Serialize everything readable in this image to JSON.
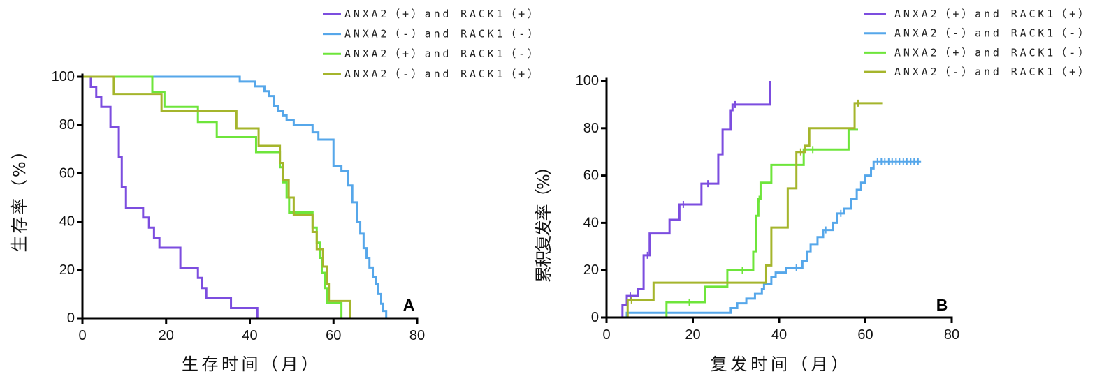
{
  "chart_data": [
    {
      "type": "line",
      "line_shape": "step",
      "panel_label": "A",
      "xlabel": "生存时间（月）",
      "ylabel": "生存率（%）",
      "xlim": [
        0,
        80
      ],
      "ylim": [
        0,
        100
      ],
      "xticks": [
        0,
        20,
        40,
        60,
        80
      ],
      "yticks": [
        0,
        20,
        40,
        60,
        80,
        100
      ],
      "grid": false,
      "legend_position": "top-right",
      "series": [
        {
          "name": "ANXA2（+）and RACK1（+）",
          "color": "#7c4ddf",
          "points": [
            [
              0,
              100
            ],
            [
              2,
              95.8
            ],
            [
              3.3,
              91.7
            ],
            [
              4.5,
              87.5
            ],
            [
              6.7,
              79.2
            ],
            [
              8.7,
              66.7
            ],
            [
              9.4,
              54.2
            ],
            [
              10.4,
              45.8
            ],
            [
              14.5,
              41.7
            ],
            [
              15.9,
              37.5
            ],
            [
              17.1,
              33.3
            ],
            [
              18.4,
              29.2
            ],
            [
              23.4,
              20.8
            ],
            [
              27.6,
              16.7
            ],
            [
              28.6,
              12.5
            ],
            [
              29.6,
              8.3
            ],
            [
              35.5,
              4.2
            ],
            [
              41.8,
              0
            ]
          ]
        },
        {
          "name": "ANXA2（-）and RACK1（-）",
          "color": "#56a7ea",
          "points": [
            [
              0,
              100
            ],
            [
              37.6,
              98
            ],
            [
              41.3,
              96
            ],
            [
              43.5,
              94
            ],
            [
              44.6,
              92
            ],
            [
              45.8,
              88
            ],
            [
              46.8,
              86
            ],
            [
              48,
              84
            ],
            [
              48.8,
              82
            ],
            [
              50.5,
              80
            ],
            [
              55,
              77
            ],
            [
              56.4,
              74
            ],
            [
              60,
              63
            ],
            [
              61.9,
              61
            ],
            [
              63.5,
              55
            ],
            [
              64.5,
              48
            ],
            [
              65.6,
              40
            ],
            [
              66.4,
              35
            ],
            [
              67.2,
              29
            ],
            [
              67.9,
              25
            ],
            [
              68.6,
              21
            ],
            [
              69.4,
              17
            ],
            [
              70.1,
              14
            ],
            [
              70.7,
              10
            ],
            [
              71.4,
              6
            ],
            [
              71.9,
              3
            ],
            [
              72.6,
              0
            ]
          ]
        },
        {
          "name": "ANXA2（+）and RACK1（-）",
          "color": "#6ee53b",
          "points": [
            [
              0,
              100
            ],
            [
              16.7,
              93.8
            ],
            [
              19.6,
              87.5
            ],
            [
              27.6,
              81.3
            ],
            [
              32.1,
              75
            ],
            [
              41.5,
              68.8
            ],
            [
              47.2,
              62.5
            ],
            [
              48,
              56.3
            ],
            [
              48.8,
              50
            ],
            [
              49.4,
              43.8
            ],
            [
              55,
              37.5
            ],
            [
              56,
              31.3
            ],
            [
              56.7,
              25
            ],
            [
              57.2,
              18.8
            ],
            [
              57.9,
              12.5
            ],
            [
              58.5,
              6.3
            ],
            [
              61.9,
              0
            ]
          ]
        },
        {
          "name": "ANXA2（-）and RACK1（+）",
          "color": "#a5b52c",
          "points": [
            [
              0,
              100
            ],
            [
              7.5,
              92.9
            ],
            [
              18.9,
              85.7
            ],
            [
              36.8,
              78.6
            ],
            [
              42.1,
              71.4
            ],
            [
              47.2,
              64.3
            ],
            [
              48,
              57.1
            ],
            [
              49.3,
              50
            ],
            [
              50.5,
              42.9
            ],
            [
              55,
              35.7
            ],
            [
              56,
              28.6
            ],
            [
              57.5,
              21.4
            ],
            [
              58.4,
              14.3
            ],
            [
              58.9,
              7.1
            ],
            [
              63.9,
              0
            ]
          ]
        }
      ]
    },
    {
      "type": "line",
      "line_shape": "step",
      "panel_label": "B",
      "xlabel": "复发时间（月）",
      "ylabel": "累积复发率（%）",
      "xlim": [
        0,
        80
      ],
      "ylim": [
        0,
        100
      ],
      "xticks": [
        0,
        20,
        40,
        60,
        80
      ],
      "yticks": [
        0,
        20,
        40,
        60,
        80,
        100
      ],
      "grid": false,
      "legend_position": "top-right",
      "series": [
        {
          "name": "ANXA2（+）and RACK1（+）",
          "color": "#7c4ddf",
          "points": [
            [
              0,
              0
            ],
            [
              3.7,
              5.3
            ],
            [
              4.7,
              9.1
            ],
            [
              7.3,
              12
            ],
            [
              8.6,
              26.3
            ],
            [
              10,
              35.5
            ],
            [
              14.6,
              41.3
            ],
            [
              16.9,
              47.8
            ],
            [
              22,
              56.6
            ],
            [
              25.9,
              69
            ],
            [
              26.9,
              79.4
            ],
            [
              28.8,
              87.6
            ],
            [
              29.2,
              90
            ],
            [
              37.9,
              100
            ]
          ],
          "censored": [
            5.5,
            9.5,
            17.8,
            23.5,
            29.8
          ]
        },
        {
          "name": "ANXA2（-）and RACK1（-）",
          "color": "#56a7ea",
          "points": [
            [
              0,
              0
            ],
            [
              4.7,
              2
            ],
            [
              28.8,
              4
            ],
            [
              30.3,
              6
            ],
            [
              32.4,
              8
            ],
            [
              34.4,
              10
            ],
            [
              36,
              12
            ],
            [
              36.5,
              14
            ],
            [
              38.2,
              17
            ],
            [
              39.2,
              19
            ],
            [
              41.7,
              21
            ],
            [
              45.4,
              24
            ],
            [
              46.5,
              28
            ],
            [
              47.3,
              31
            ],
            [
              48.9,
              34
            ],
            [
              50.2,
              37
            ],
            [
              52.5,
              40
            ],
            [
              53.5,
              44
            ],
            [
              55.1,
              46
            ],
            [
              56.7,
              50
            ],
            [
              58,
              54
            ],
            [
              59,
              57
            ],
            [
              60,
              60
            ],
            [
              61.3,
              63
            ],
            [
              61.9,
              66
            ],
            [
              72.9,
              66
            ]
          ],
          "censored": [
            44.0,
            50.8,
            54.3,
            62.8,
            63.7,
            64.5,
            65.4,
            66.2,
            67.1,
            67.9,
            68.8,
            69.6,
            70.5,
            71.3,
            72.2
          ]
        },
        {
          "name": "ANXA2（+）and RACK1（-）",
          "color": "#6ee53b",
          "points": [
            [
              0,
              0
            ],
            [
              13.9,
              6.5
            ],
            [
              22.8,
              13
            ],
            [
              28,
              20
            ],
            [
              34,
              28
            ],
            [
              34.7,
              43
            ],
            [
              35.2,
              50
            ],
            [
              35.7,
              57
            ],
            [
              38.2,
              64.5
            ],
            [
              45.7,
              71
            ],
            [
              56.1,
              79.4
            ],
            [
              58.3,
              79.4
            ]
          ],
          "censored": [
            19.2,
            31.5,
            35.4,
            47.8
          ]
        },
        {
          "name": "ANXA2（-）and RACK1（+）",
          "color": "#a5b52c",
          "points": [
            [
              0,
              0
            ],
            [
              4.9,
              7.4
            ],
            [
              10.9,
              14.7
            ],
            [
              37,
              22
            ],
            [
              38.2,
              38
            ],
            [
              42,
              54.6
            ],
            [
              44,
              70
            ],
            [
              46,
              72.6
            ],
            [
              47,
              80
            ],
            [
              57.5,
              90.6
            ],
            [
              63.9,
              90.6
            ]
          ],
          "censored": [
            5.8,
            45.0,
            58.3
          ]
        }
      ]
    }
  ]
}
